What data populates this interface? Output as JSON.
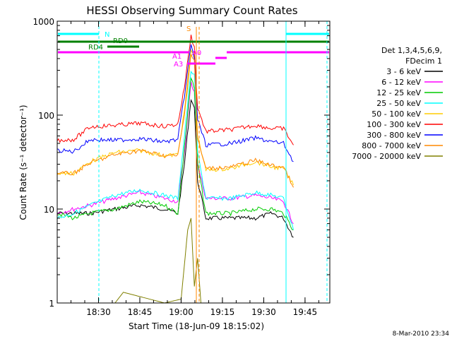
{
  "chart_data": {
    "type": "line",
    "title": "HESSI Observing Summary Count Rates",
    "xlabel": "Start Time (18-Jun-09 18:15:02)",
    "ylabel": "Count Rate (s⁻¹ detector⁻¹)",
    "yscale": "log",
    "ylim": [
      1,
      1000
    ],
    "xlim_minutes": [
      18.25,
      19.9
    ],
    "x_ticks": [
      "18:30",
      "18:45",
      "19:00",
      "19:15",
      "19:30",
      "19:45"
    ],
    "y_ticks": [
      "1",
      "10",
      "100",
      "1000"
    ],
    "x_tick_values": [
      18.5,
      18.75,
      19.0,
      19.25,
      19.5,
      19.75
    ],
    "legend": {
      "header": [
        "Det 1,3,4,5,6,9,",
        "FDecim 1"
      ],
      "placement": "right"
    },
    "series": [
      {
        "name": "3 - 6 keV",
        "color": "#000000",
        "points": [
          [
            18.25,
            9
          ],
          [
            18.35,
            9
          ],
          [
            18.45,
            9
          ],
          [
            18.6,
            10
          ],
          [
            18.75,
            11
          ],
          [
            18.9,
            10
          ],
          [
            18.98,
            9
          ],
          [
            19.02,
            30
          ],
          [
            19.06,
            150
          ],
          [
            19.08,
            120
          ],
          [
            19.1,
            20
          ],
          [
            19.15,
            8
          ],
          [
            19.3,
            8
          ],
          [
            19.45,
            8
          ],
          [
            19.55,
            9
          ],
          [
            19.62,
            8
          ],
          [
            19.68,
            5
          ]
        ]
      },
      {
        "name": "6 - 12 keV",
        "color": "#ff00ff",
        "points": [
          [
            18.25,
            9
          ],
          [
            18.35,
            10
          ],
          [
            18.45,
            11
          ],
          [
            18.6,
            13
          ],
          [
            18.75,
            15
          ],
          [
            18.9,
            13
          ],
          [
            18.98,
            12
          ],
          [
            19.02,
            40
          ],
          [
            19.06,
            220
          ],
          [
            19.08,
            180
          ],
          [
            19.1,
            30
          ],
          [
            19.15,
            13
          ],
          [
            19.3,
            13
          ],
          [
            19.45,
            14
          ],
          [
            19.55,
            13
          ],
          [
            19.62,
            12
          ],
          [
            19.68,
            7
          ]
        ]
      },
      {
        "name": "12 - 25 keV",
        "color": "#00cc00",
        "points": [
          [
            18.25,
            9
          ],
          [
            18.35,
            8
          ],
          [
            18.45,
            9
          ],
          [
            18.6,
            10
          ],
          [
            18.75,
            12
          ],
          [
            18.9,
            11
          ],
          [
            18.98,
            9
          ],
          [
            19.02,
            45
          ],
          [
            19.06,
            250
          ],
          [
            19.08,
            190
          ],
          [
            19.1,
            30
          ],
          [
            19.15,
            9
          ],
          [
            19.3,
            9
          ],
          [
            19.45,
            10
          ],
          [
            19.55,
            10
          ],
          [
            19.62,
            9
          ],
          [
            19.68,
            6
          ]
        ]
      },
      {
        "name": "25 - 50 keV",
        "color": "#00ffff",
        "points": [
          [
            18.25,
            8
          ],
          [
            18.35,
            9
          ],
          [
            18.45,
            11
          ],
          [
            18.6,
            14
          ],
          [
            18.75,
            16
          ],
          [
            18.9,
            14
          ],
          [
            18.98,
            13
          ],
          [
            19.02,
            60
          ],
          [
            19.06,
            300
          ],
          [
            19.08,
            260
          ],
          [
            19.1,
            40
          ],
          [
            19.15,
            13
          ],
          [
            19.3,
            13
          ],
          [
            19.45,
            15
          ],
          [
            19.55,
            14
          ],
          [
            19.62,
            13
          ],
          [
            19.68,
            6
          ]
        ]
      },
      {
        "name": "50 - 100 keV",
        "color": "#ffcc00",
        "points": [
          [
            18.25,
            24
          ],
          [
            18.35,
            24
          ],
          [
            18.45,
            32
          ],
          [
            18.6,
            40
          ],
          [
            18.75,
            42
          ],
          [
            18.9,
            37
          ],
          [
            18.98,
            38
          ],
          [
            19.02,
            110
          ],
          [
            19.06,
            500
          ],
          [
            19.08,
            420
          ],
          [
            19.1,
            60
          ],
          [
            19.15,
            26
          ],
          [
            19.3,
            27
          ],
          [
            19.45,
            32
          ],
          [
            19.55,
            28
          ],
          [
            19.62,
            27
          ],
          [
            19.68,
            18
          ]
        ]
      },
      {
        "name": "100 - 300 keV",
        "color": "#ff0000",
        "points": [
          [
            18.25,
            54
          ],
          [
            18.35,
            55
          ],
          [
            18.45,
            75
          ],
          [
            18.6,
            78
          ],
          [
            18.75,
            82
          ],
          [
            18.9,
            76
          ],
          [
            18.98,
            80
          ],
          [
            19.02,
            200
          ],
          [
            19.06,
            700
          ],
          [
            19.08,
            520
          ],
          [
            19.1,
            120
          ],
          [
            19.15,
            67
          ],
          [
            19.3,
            70
          ],
          [
            19.45,
            78
          ],
          [
            19.55,
            72
          ],
          [
            19.62,
            72
          ],
          [
            19.68,
            48
          ]
        ]
      },
      {
        "name": "300 - 800 keV",
        "color": "#0000ff",
        "points": [
          [
            18.25,
            42
          ],
          [
            18.35,
            41
          ],
          [
            18.45,
            55
          ],
          [
            18.6,
            54
          ],
          [
            18.75,
            56
          ],
          [
            18.9,
            52
          ],
          [
            18.98,
            55
          ],
          [
            19.02,
            160
          ],
          [
            19.06,
            560
          ],
          [
            19.08,
            400
          ],
          [
            19.1,
            90
          ],
          [
            19.15,
            48
          ],
          [
            19.3,
            50
          ],
          [
            19.45,
            57
          ],
          [
            19.55,
            52
          ],
          [
            19.62,
            50
          ],
          [
            19.68,
            32
          ]
        ]
      },
      {
        "name": "800 - 7000 keV",
        "color": "#ff8800",
        "points": [
          [
            18.25,
            24
          ],
          [
            18.35,
            24
          ],
          [
            18.45,
            31
          ],
          [
            18.6,
            38
          ],
          [
            18.75,
            42
          ],
          [
            18.9,
            37
          ],
          [
            18.98,
            37
          ],
          [
            19.02,
            100
          ],
          [
            19.06,
            450
          ],
          [
            19.08,
            380
          ],
          [
            19.1,
            55
          ],
          [
            19.15,
            27
          ],
          [
            19.3,
            28
          ],
          [
            19.45,
            33
          ],
          [
            19.55,
            29
          ],
          [
            19.62,
            28
          ],
          [
            19.68,
            17
          ]
        ]
      },
      {
        "name": "7000 - 20000 keV",
        "color": "#808000",
        "points": [
          [
            18.6,
            1.0
          ],
          [
            18.65,
            1.3
          ],
          [
            18.9,
            1.0
          ],
          [
            19.0,
            1.1
          ],
          [
            19.04,
            6
          ],
          [
            19.06,
            8
          ],
          [
            19.08,
            1.5
          ],
          [
            19.1,
            3
          ],
          [
            19.12,
            1.0
          ]
        ]
      }
    ],
    "annotations": {
      "state_labels": [
        "N",
        "RD0",
        "RD4",
        "S",
        "A0",
        "A1",
        "A3"
      ]
    }
  },
  "footer": {
    "date": "8-Mar-2010 23:34"
  }
}
